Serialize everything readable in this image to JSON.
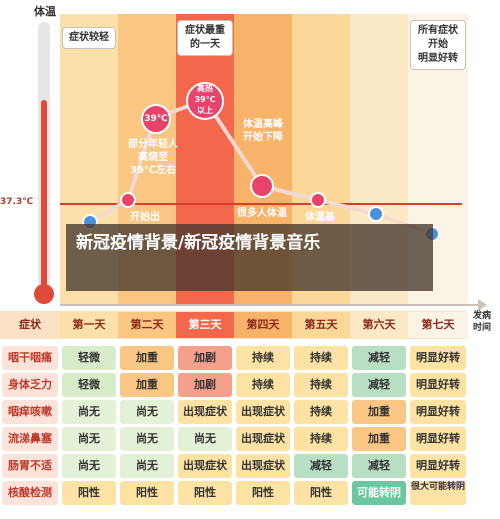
{
  "axis": {
    "y_label": "体温",
    "temp_marker": "37.3℃",
    "x_label_line1": "发病",
    "x_label_line2": "时间"
  },
  "headers": {
    "mild": "症状较轻",
    "peak_line1": "症状最重",
    "peak_line2": "的一天",
    "recover_line1": "所有症状",
    "recover_line2": "开始",
    "recover_line3": "明显好转"
  },
  "annotations": {
    "bubble1": "39℃",
    "bubble2_line1": "高热",
    "bubble2_line2": "39℃",
    "bubble2_line3": "以上",
    "text1_line1": "部分年轻人",
    "text1_line2": "高烧至",
    "text1_line3": "39℃左右",
    "text2_line1": "体温高峰",
    "text2_line2": "开始下降",
    "text3": "开始出",
    "text4": "很多人体温",
    "text5": "体温基"
  },
  "table": {
    "corner": "症状",
    "days": [
      "第一天",
      "第二天",
      "第三天",
      "第四天",
      "第五天",
      "第六天",
      "第七天"
    ],
    "rows": [
      {
        "label": "咽干咽痛",
        "cells": [
          "轻微",
          "加重",
          "加剧",
          "持续",
          "持续",
          "减轻",
          "明显好转"
        ]
      },
      {
        "label": "身体乏力",
        "cells": [
          "轻微",
          "加重",
          "加剧",
          "持续",
          "持续",
          "减轻",
          "明显好转"
        ]
      },
      {
        "label": "咽痒咳嗽",
        "cells": [
          "尚无",
          "尚无",
          "出现症状",
          "出现症状",
          "持续",
          "加重",
          "明显好转"
        ]
      },
      {
        "label": "流涕鼻塞",
        "cells": [
          "尚无",
          "尚无",
          "尚无",
          "出现症状",
          "持续",
          "加重",
          "明显好转"
        ]
      },
      {
        "label": "肠胃不适",
        "cells": [
          "尚无",
          "尚无",
          "出现症状",
          "出现症状",
          "减轻",
          "减轻",
          "明显好转"
        ]
      },
      {
        "label": "核酸检测",
        "cells": [
          "阳性",
          "阳性",
          "阳性",
          "阳性",
          "阳性",
          "可能转阴",
          "很大可能转阴"
        ]
      }
    ]
  },
  "overlay_title": "新冠疫情背景/新冠疫情背景音乐",
  "colors": {
    "band_light": "#fbe1a9",
    "band_mid": "#f8b36a",
    "band_peak": "#f3674d",
    "band_recover": "#fbf4e6",
    "green": "#d9ecc9",
    "yellow": "#fce3a3",
    "orange": "#f7c27a",
    "red": "#f5a08a",
    "teal": "#6bc79f",
    "temp_line": "#d6402f"
  }
}
